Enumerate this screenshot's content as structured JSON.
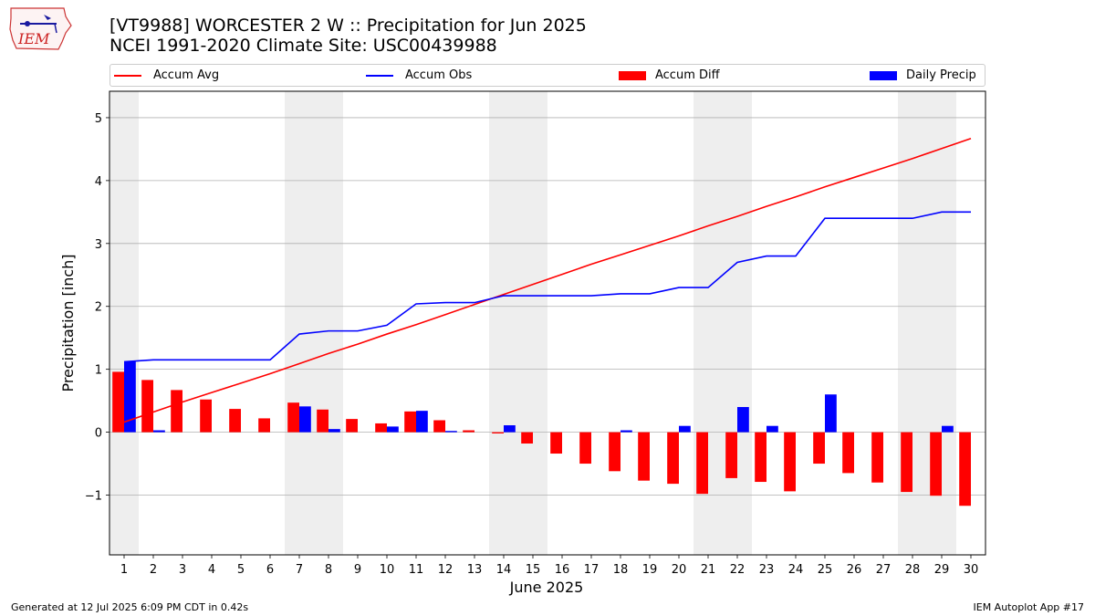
{
  "header": {
    "title_line1": "[VT9988] WORCESTER 2 W :: Precipitation for Jun 2025",
    "title_line2": "NCEI 1991-2020 Climate Site: USC00439988",
    "logo_text": "IEM"
  },
  "legend": {
    "items": [
      {
        "label": "Accum Avg",
        "kind": "line",
        "color": "#ff0000"
      },
      {
        "label": "Accum Obs",
        "kind": "line",
        "color": "#0000ff"
      },
      {
        "label": "Accum Diff",
        "kind": "bar",
        "color": "#ff0000"
      },
      {
        "label": "Daily Precip",
        "kind": "bar",
        "color": "#0000ff"
      }
    ]
  },
  "footer": {
    "left": "Generated at 12 Jul 2025 6:09 PM CDT in 0.42s",
    "right": "IEM Autoplot App #17"
  },
  "chart_data": {
    "type": "bar",
    "title": "[VT9988] WORCESTER 2 W :: Precipitation for Jun 2025",
    "subtitle": "NCEI 1991-2020 Climate Site: USC00439988",
    "xlabel": "June 2025",
    "ylabel": "Precipitation [inch]",
    "x": [
      1,
      2,
      3,
      4,
      5,
      6,
      7,
      8,
      9,
      10,
      11,
      12,
      13,
      14,
      15,
      16,
      17,
      18,
      19,
      20,
      21,
      22,
      23,
      24,
      25,
      26,
      27,
      28,
      29,
      30
    ],
    "xlim": [
      0.5,
      30.5
    ],
    "ylim": [
      -1.95,
      5.42
    ],
    "yticks": [
      -1,
      0,
      1,
      2,
      3,
      4,
      5
    ],
    "ytick_labels": [
      "−1",
      "0",
      "1",
      "2",
      "3",
      "4",
      "5"
    ],
    "grid": "horizontal",
    "legend_position": "top",
    "shaded_day_ranges": [
      [
        0.5,
        1.5
      ],
      [
        6.5,
        8.5
      ],
      [
        13.5,
        15.5
      ],
      [
        20.5,
        22.5
      ],
      [
        27.5,
        29.5
      ]
    ],
    "series": [
      {
        "name": "Accum Avg",
        "kind": "line",
        "color": "#ff0000",
        "values": [
          0.16,
          0.32,
          0.48,
          0.63,
          0.78,
          0.93,
          1.09,
          1.25,
          1.4,
          1.56,
          1.71,
          1.87,
          2.03,
          2.19,
          2.35,
          2.51,
          2.67,
          2.82,
          2.97,
          3.12,
          3.28,
          3.43,
          3.59,
          3.74,
          3.9,
          4.05,
          4.2,
          4.35,
          4.51,
          4.67
        ]
      },
      {
        "name": "Accum Obs",
        "kind": "line",
        "color": "#0000ff",
        "values": [
          1.12,
          1.15,
          1.15,
          1.15,
          1.15,
          1.15,
          1.56,
          1.61,
          1.61,
          1.7,
          2.04,
          2.06,
          2.06,
          2.17,
          2.17,
          2.17,
          2.17,
          2.2,
          2.2,
          2.3,
          2.3,
          2.7,
          2.8,
          2.8,
          3.4,
          3.4,
          3.4,
          3.4,
          3.5,
          3.5
        ]
      },
      {
        "name": "Accum Diff",
        "kind": "bar",
        "color": "#ff0000",
        "values": [
          0.96,
          0.83,
          0.67,
          0.52,
          0.37,
          0.22,
          0.47,
          0.36,
          0.21,
          0.14,
          0.33,
          0.19,
          0.03,
          -0.02,
          -0.18,
          -0.34,
          -0.5,
          -0.62,
          -0.77,
          -0.82,
          -0.98,
          -0.73,
          -0.79,
          -0.94,
          -0.5,
          -0.65,
          -0.8,
          -0.95,
          -1.01,
          -1.17
        ]
      },
      {
        "name": "Daily Precip",
        "kind": "bar",
        "color": "#0000ff",
        "values": [
          1.12,
          0.03,
          0,
          0,
          0,
          0,
          0.41,
          0.05,
          0,
          0.09,
          0.34,
          0.02,
          0,
          0.11,
          0,
          0,
          0,
          0.03,
          0,
          0.1,
          0,
          0.4,
          0.1,
          0,
          0.6,
          0,
          0,
          0,
          0.1,
          0
        ]
      }
    ]
  }
}
